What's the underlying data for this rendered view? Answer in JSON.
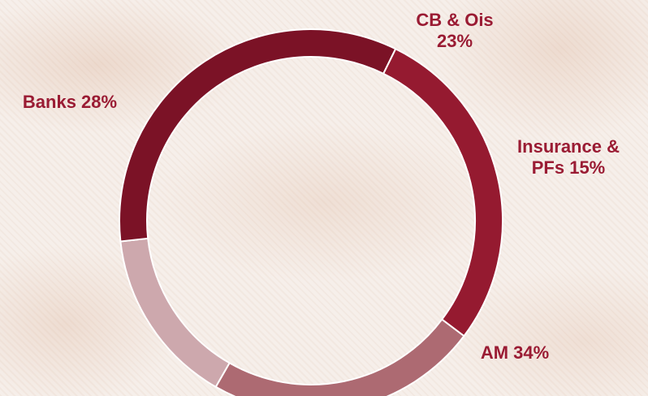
{
  "chart_data": {
    "type": "pie",
    "donut": true,
    "title": "",
    "slices": [
      {
        "name": "CB & Ois",
        "value": 23,
        "label_lines": [
          "CB & Ois",
          "23%"
        ],
        "color": "#ad6a72"
      },
      {
        "name": "Insurance & PFs",
        "value": 15,
        "label_lines": [
          "Insurance &",
          "PFs 15%"
        ],
        "color": "#cda8ad"
      },
      {
        "name": "AM",
        "value": 34,
        "label_lines": [
          "AM 34%"
        ],
        "color": "#7b1226"
      },
      {
        "name": "Banks",
        "value": 28,
        "label_lines": [
          "Banks 28%"
        ],
        "color": "#951a30"
      }
    ],
    "label_color": "#9a1b33",
    "separator_color": "#ffffff"
  }
}
